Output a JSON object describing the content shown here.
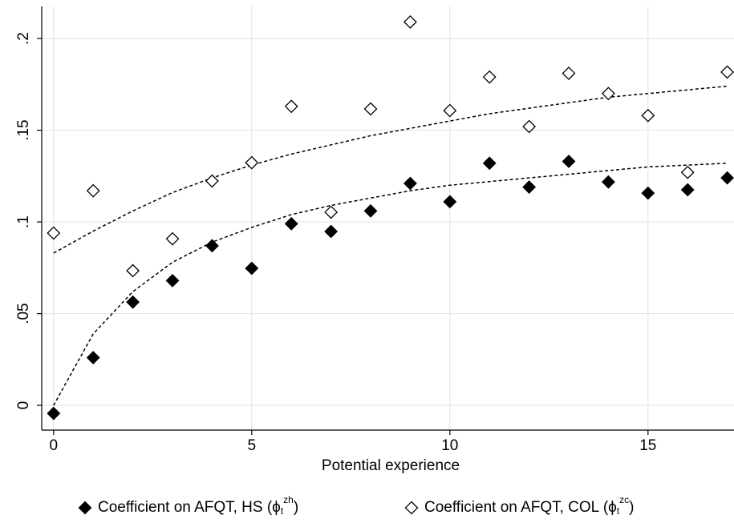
{
  "chart_data": {
    "type": "scatter",
    "x_label": "Potential experience",
    "x": [
      0,
      1,
      2,
      3,
      4,
      5,
      6,
      7,
      8,
      9,
      10,
      11,
      12,
      13,
      14,
      15,
      16,
      17
    ],
    "series": [
      {
        "name": "Coefficient on AFQT, HS (ϕ",
        "name_sub": "t",
        "name_sup": "zh",
        "name_end": ")",
        "color": "#000000",
        "marker": "filled-diamond",
        "values": [
          -0.0044,
          0.026,
          0.0563,
          0.068,
          0.087,
          0.0747,
          0.099,
          0.0948,
          0.106,
          0.121,
          0.111,
          0.132,
          0.119,
          0.133,
          0.1218,
          0.1157,
          0.1175,
          0.124
        ],
        "fit_values": [
          0,
          0.039,
          0.062,
          0.078,
          0.089,
          0.097,
          0.104,
          0.109,
          0.113,
          0.117,
          0.12,
          0.122,
          0.124,
          0.126,
          0.128,
          0.13,
          0.131,
          0.132
        ]
      },
      {
        "name": "Coefficient on AFQT, COL (ϕ",
        "name_sub": "t",
        "name_sup": "zc",
        "name_end": ")",
        "color": "#000000",
        "marker": "hollow-diamond",
        "values": [
          0.0939,
          0.117,
          0.0734,
          0.0908,
          0.1223,
          0.1323,
          0.163,
          0.1053,
          0.1616,
          0.209,
          0.1607,
          0.179,
          0.152,
          0.181,
          0.17,
          0.158,
          0.127,
          0.1817
        ],
        "fit_values": [
          0.083,
          0.095,
          0.106,
          0.116,
          0.124,
          0.131,
          0.137,
          0.142,
          0.147,
          0.151,
          0.155,
          0.159,
          0.162,
          0.165,
          0.168,
          0.17,
          0.172,
          0.174
        ]
      }
    ],
    "xlim": [
      -0.3,
      17.17
    ],
    "ylim": [
      -0.0135,
      0.2175
    ],
    "xticks": [
      0,
      5,
      10,
      15
    ],
    "yticks": [
      0,
      {
        "value": 0.05,
        "label": ".05"
      },
      {
        "value": 0.1,
        "label": ".1"
      },
      {
        "value": 0.15,
        "label": ".15"
      },
      {
        "value": 0.2,
        "label": ".2"
      }
    ],
    "grid": true,
    "legend": "bottom"
  }
}
